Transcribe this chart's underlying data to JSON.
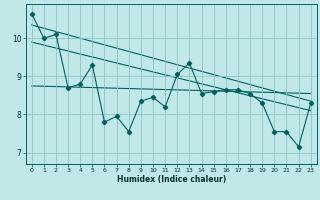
{
  "title": "",
  "xlabel": "Humidex (Indice chaleur)",
  "bg_color": "#c0e8e8",
  "grid_color": "#90c4c4",
  "line_color": "#006060",
  "xlim": [
    -0.5,
    23.5
  ],
  "ylim": [
    6.7,
    10.9
  ],
  "yticks": [
    7,
    8,
    9,
    10
  ],
  "xticks": [
    0,
    1,
    2,
    3,
    4,
    5,
    6,
    7,
    8,
    9,
    10,
    11,
    12,
    13,
    14,
    15,
    16,
    17,
    18,
    19,
    20,
    21,
    22,
    23
  ],
  "data_x": [
    0,
    1,
    2,
    3,
    4,
    5,
    6,
    7,
    8,
    9,
    10,
    11,
    12,
    13,
    14,
    15,
    16,
    17,
    18,
    19,
    20,
    21,
    22,
    23
  ],
  "data_y": [
    10.65,
    10.0,
    10.1,
    8.7,
    8.8,
    9.3,
    7.8,
    7.95,
    7.55,
    8.35,
    8.45,
    8.2,
    9.05,
    9.35,
    8.55,
    8.6,
    8.65,
    8.65,
    8.55,
    8.3,
    7.55,
    7.55,
    7.15,
    8.3
  ],
  "trend1_x": [
    0,
    23
  ],
  "trend1_y": [
    10.35,
    8.35
  ],
  "trend2_x": [
    0,
    23
  ],
  "trend2_y": [
    9.9,
    8.1
  ],
  "trend3_x": [
    0,
    23
  ],
  "trend3_y": [
    8.75,
    8.55
  ]
}
